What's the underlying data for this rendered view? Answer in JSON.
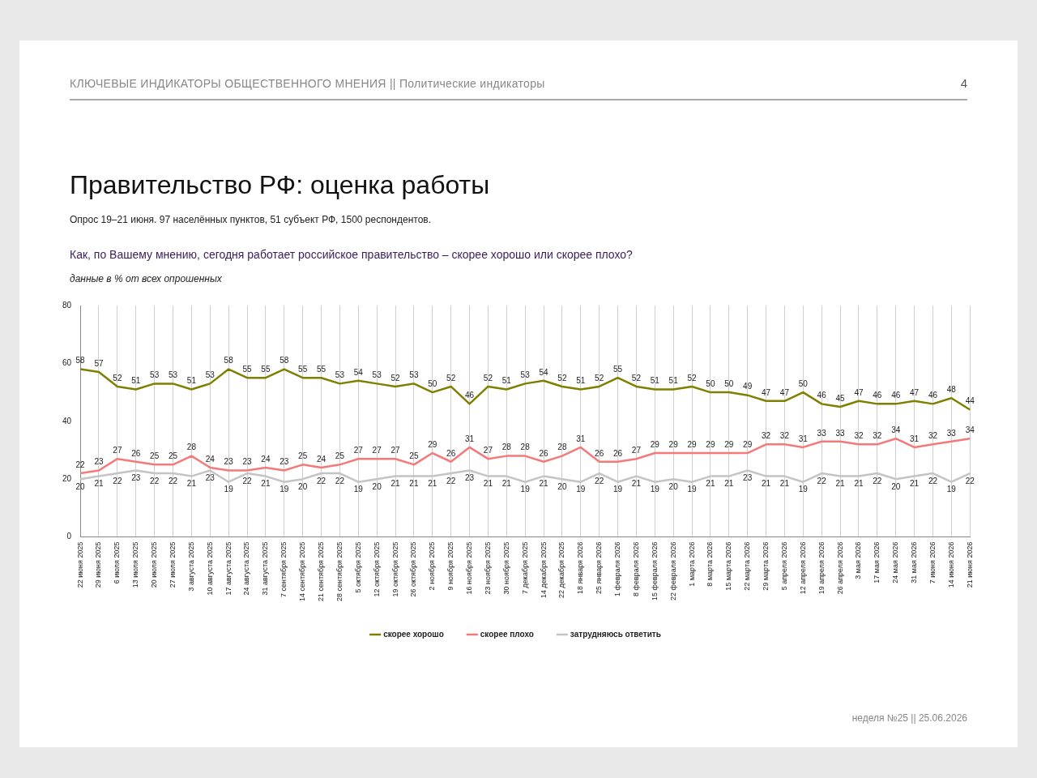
{
  "chart_data": {
    "type": "line",
    "title": "Правительство РФ: оценка работы",
    "subtitle": "Опрос 19–21 июня. 97 населённых пунктов, 51 субъект РФ, 1500 респондентов.",
    "annotations": [
      "КЛЮЧЕВЫЕ ИНДИКАТОРЫ ОБЩЕСТВЕННОГО МНЕНИЯ  ||  Политические индикаторы",
      "4",
      "Как, по Вашему мнению, сегодня работает российское правительство – скорее хорошо или скорее плохо?",
      "данные в % от всех опрошенных",
      "неделя №25 || 25.06.2026"
    ],
    "categories": [
      "22 июня 2025",
      "29 июня 2025",
      "6 июля 2025",
      "13 июля 2025",
      "20 июля 2025",
      "27 июля 2025",
      "3 августа 2025",
      "10 августа 2025",
      "17 августа 2025",
      "24 августа 2025",
      "31 августа 2025",
      "7 сентября 2025",
      "14 сентября 2025",
      "21 сентября 2025",
      "28 сентября 2025",
      "5 октября 2025",
      "12 октября 2025",
      "19 октября 2025",
      "26 октября 2025",
      "2 ноября 2025",
      "9 ноября 2025",
      "16 ноября 2025",
      "23 ноября 2025",
      "30 ноября 2025",
      "7 декабря 2025",
      "14 декабря 2025",
      "22 декабря 2025",
      "18 января 2026",
      "25 января 2026",
      "1 февраля 2026",
      "8 февраля 2026",
      "15 февраля 2026",
      "22 февраля 2026",
      "1 марта 2026",
      "8 марта 2026",
      "15 марта 2026",
      "22 марта 2026",
      "29 марта 2026",
      "5 апреля 2026",
      "12 апреля 2026",
      "19 апреля 2026",
      "26 апреля 2026",
      "3 мая 2026",
      "17 мая 2026",
      "24 мая 2026",
      "31 мая 2026",
      "7 июня 2026",
      "14 июня 2026",
      "21 июня 2026"
    ],
    "series": [
      {
        "name": "скорее хорошо",
        "color": "#7f7f00",
        "values": [
          58,
          57,
          52,
          51,
          53,
          53,
          51,
          53,
          58,
          55,
          55,
          58,
          55,
          55,
          53,
          54,
          53,
          52,
          53,
          50,
          52,
          46,
          52,
          51,
          53,
          54,
          52,
          51,
          52,
          55,
          52,
          51,
          51,
          52,
          50,
          50,
          49,
          47,
          47,
          50,
          46,
          45,
          47,
          46,
          46,
          47,
          46,
          48,
          44
        ]
      },
      {
        "name": "скорее плохо",
        "color": "#f47a7a",
        "values": [
          22,
          23,
          27,
          26,
          25,
          25,
          28,
          24,
          23,
          23,
          24,
          23,
          25,
          24,
          25,
          27,
          27,
          27,
          25,
          29,
          26,
          31,
          27,
          28,
          28,
          26,
          28,
          31,
          26,
          26,
          27,
          29,
          29,
          29,
          29,
          29,
          29,
          32,
          32,
          31,
          33,
          33,
          32,
          32,
          34,
          31,
          32,
          33,
          34
        ]
      },
      {
        "name": "затрудняюсь ответить",
        "color": "#c4c4c4",
        "values": [
          20,
          21,
          22,
          23,
          22,
          22,
          21,
          23,
          19,
          22,
          21,
          19,
          20,
          22,
          22,
          19,
          20,
          21,
          21,
          21,
          22,
          23,
          21,
          21,
          19,
          21,
          20,
          19,
          22,
          19,
          21,
          19,
          20,
          19,
          21,
          21,
          23,
          21,
          21,
          19,
          22,
          21,
          21,
          22,
          20,
          21,
          22,
          19,
          22
        ]
      }
    ],
    "ylim": [
      0,
      80
    ],
    "yticks": [
      0,
      20,
      40,
      60,
      80
    ],
    "grid": "x",
    "legend": "bottom",
    "data_labels": true
  }
}
